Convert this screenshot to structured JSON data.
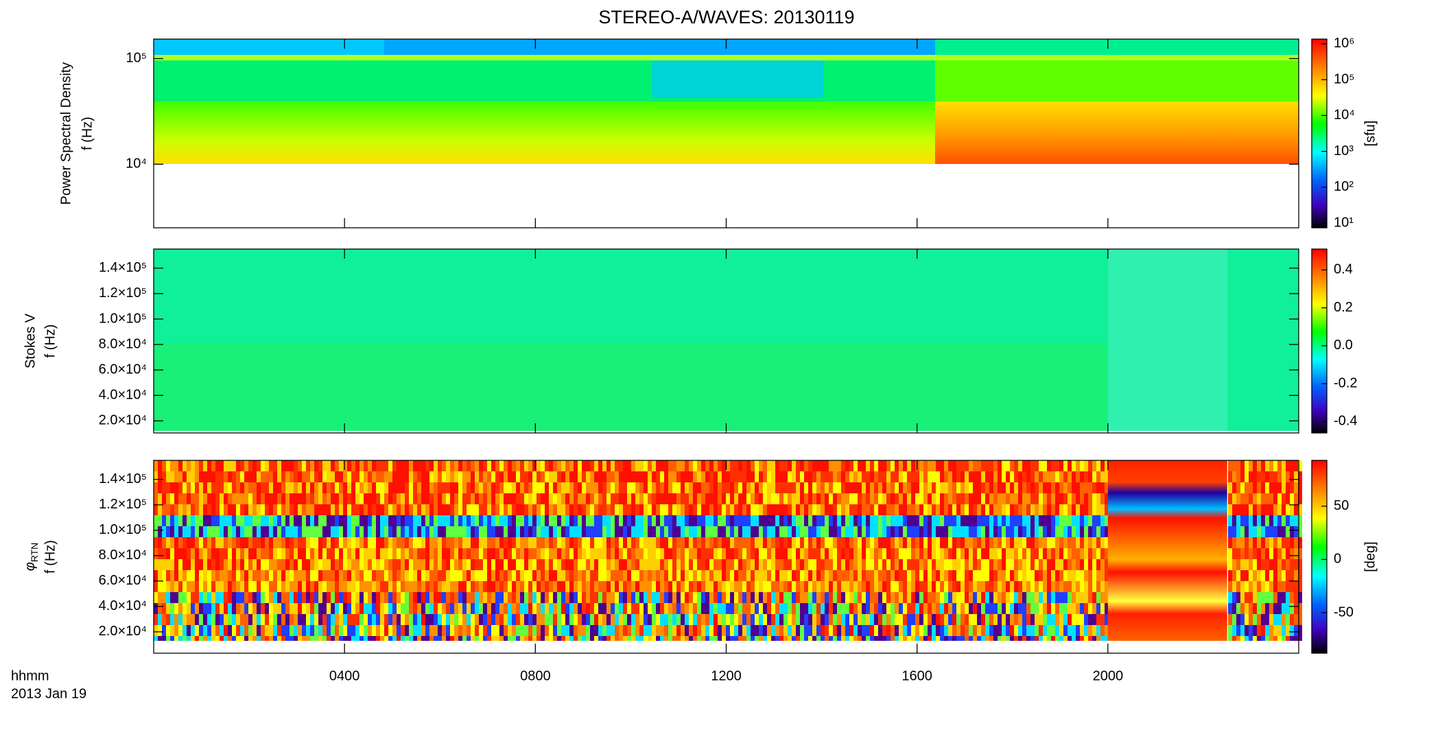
{
  "title": "STEREO-A/WAVES: 20130119",
  "xaxis": {
    "xlim": [
      0,
      24
    ],
    "xticks": [
      {
        "value": 4,
        "label": "0400"
      },
      {
        "value": 8,
        "label": "0800"
      },
      {
        "value": 12,
        "label": "1200"
      },
      {
        "value": 16,
        "label": "1600"
      },
      {
        "value": 20,
        "label": "2000"
      }
    ],
    "label": "hhmm",
    "date": "2013 Jan 19"
  },
  "chart_data": [
    {
      "type": "heatmap",
      "ylabel": [
        "Power Spectral Density",
        "f (Hz)"
      ],
      "ylog": true,
      "ylim": [
        2500,
        153000
      ],
      "yticks": [
        {
          "value": 10000,
          "label": "10⁴"
        },
        {
          "value": 100000,
          "label": "10⁵"
        }
      ],
      "colorbar": {
        "log": true,
        "lim": [
          7.4,
          1350000
        ],
        "ticks": [
          {
            "value": 10,
            "label": "10¹"
          },
          {
            "value": 100,
            "label": "10²"
          },
          {
            "value": 1000,
            "label": "10³"
          },
          {
            "value": 10000,
            "label": "10⁴"
          },
          {
            "value": 100000,
            "label": "10⁵"
          },
          {
            "value": 1000000,
            "label": "10⁶"
          }
        ],
        "label": "[sfu]"
      }
    },
    {
      "type": "heatmap",
      "ylabel": [
        "Stokes V",
        "f (Hz)"
      ],
      "ylog": false,
      "ylim": [
        10500,
        155000
      ],
      "yticks": [
        {
          "value": 20000,
          "label": "2.0×10⁴"
        },
        {
          "value": 40000,
          "label": "4.0×10⁴"
        },
        {
          "value": 60000,
          "label": "6.0×10⁴"
        },
        {
          "value": 80000,
          "label": "8.0×10⁴"
        },
        {
          "value": 100000,
          "label": "1.0×10⁵"
        },
        {
          "value": 120000,
          "label": "1.2×10⁵"
        },
        {
          "value": 140000,
          "label": "1.4×10⁵"
        }
      ],
      "colorbar": {
        "log": false,
        "lim": [
          -0.46,
          0.51
        ],
        "ticks": [
          -0.4,
          -0.2,
          {
            "value": 0,
            "label": "0.0"
          },
          0.2,
          0.4
        ]
      }
    },
    {
      "type": "heatmap",
      "ysymbol": "φ",
      "ysub": "RTN",
      "ylabel": [
        "f (Hz)"
      ],
      "ylog": false,
      "ylim": [
        3200,
        155000
      ],
      "yticks": [
        {
          "value": 20000,
          "label": "2.0×10⁴"
        },
        {
          "value": 40000,
          "label": "4.0×10⁴"
        },
        {
          "value": 60000,
          "label": "6.0×10⁴"
        },
        {
          "value": 80000,
          "label": "8.0×10⁴"
        },
        {
          "value": 100000,
          "label": "1.0×10⁵"
        },
        {
          "value": 120000,
          "label": "1.2×10⁵"
        },
        {
          "value": 140000,
          "label": "1.4×10⁵"
        }
      ],
      "colorbar": {
        "log": false,
        "lim": [
          -88,
          93
        ],
        "ticks": [
          -50,
          0,
          50
        ],
        "label": "[deg]"
      }
    }
  ]
}
